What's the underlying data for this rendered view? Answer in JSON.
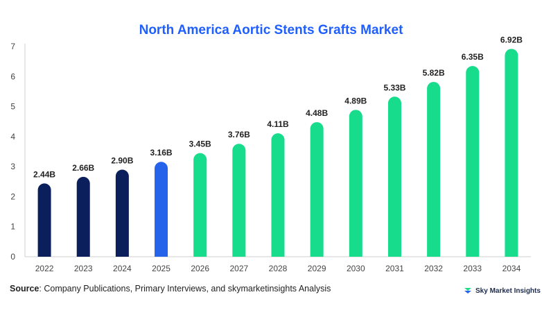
{
  "chart_data": {
    "type": "bar",
    "title": "North America Aortic Stents Grafts Market",
    "categories": [
      "2022",
      "2023",
      "2024",
      "2025",
      "2026",
      "2027",
      "2028",
      "2029",
      "2030",
      "2031",
      "2032",
      "2033",
      "2034"
    ],
    "values": [
      2.44,
      2.66,
      2.9,
      3.16,
      3.45,
      3.76,
      4.11,
      4.48,
      4.89,
      5.33,
      5.82,
      6.35,
      6.92
    ],
    "data_labels": [
      "2.44B",
      "2.66B",
      "2.90B",
      "3.16B",
      "3.45B",
      "3.76B",
      "4.11B",
      "4.48B",
      "4.89B",
      "5.33B",
      "5.82B",
      "6.35B",
      "6.92B"
    ],
    "bar_colors": [
      "#0a1f5c",
      "#0a1f5c",
      "#0a1f5c",
      "#2563eb",
      "#16dc8c",
      "#16dc8c",
      "#16dc8c",
      "#16dc8c",
      "#16dc8c",
      "#16dc8c",
      "#16dc8c",
      "#16dc8c",
      "#16dc8c"
    ],
    "ylim": [
      0,
      7
    ],
    "yticks": [
      "0",
      "1",
      "2",
      "3",
      "4",
      "5",
      "6",
      "7"
    ],
    "xlabel": "",
    "ylabel": "",
    "grid": false
  },
  "footer": {
    "source_label": "Source",
    "source_text": ": Company Publications, Primary Interviews, and skymarketinsights Analysis",
    "brand_name": "Sky Market Insights"
  },
  "colors": {
    "title": "#1f5eff",
    "historical": "#0a1f5c",
    "current": "#2563eb",
    "forecast": "#16dc8c"
  }
}
